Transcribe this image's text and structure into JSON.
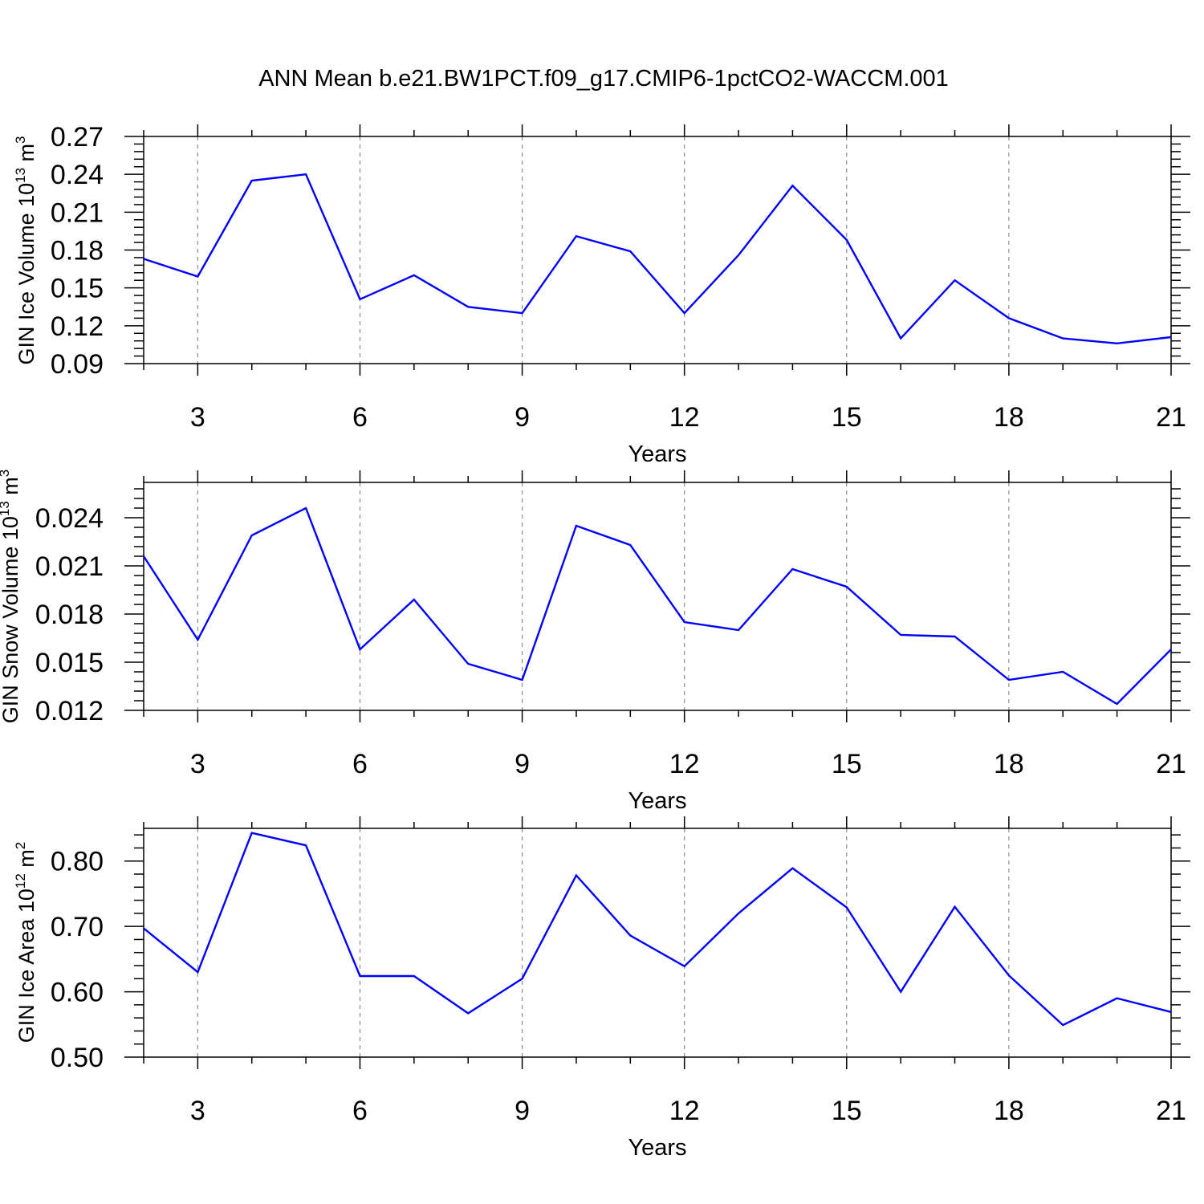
{
  "title": "ANN Mean b.e21.BW1PCT.f09_g17.CMIP6-1pctCO2-WACCM.001",
  "line_color": "#0000ff",
  "chart_data": [
    {
      "type": "line",
      "xlabel": "Years",
      "ylabel": {
        "text": "GIN Ice Volume 10",
        "sup": "13",
        "unit": " m",
        "unit_sup": "3"
      },
      "x": [
        2,
        3,
        4,
        5,
        6,
        7,
        8,
        9,
        10,
        11,
        12,
        13,
        14,
        15,
        16,
        17,
        18,
        19,
        20,
        21
      ],
      "series": [
        {
          "values": [
            0.173,
            0.159,
            0.235,
            0.24,
            0.141,
            0.16,
            0.135,
            0.13,
            0.191,
            0.179,
            0.13,
            0.176,
            0.231,
            0.188,
            0.11,
            0.156,
            0.126,
            0.11,
            0.106,
            0.111
          ]
        }
      ],
      "xlim": [
        2,
        21
      ],
      "ylim": [
        0.09,
        0.27
      ],
      "xticks": [
        "3",
        "6",
        "9",
        "12",
        "15",
        "18",
        "21"
      ],
      "yticks": [
        "0.09",
        "0.12",
        "0.15",
        "0.18",
        "0.21",
        "0.24",
        "0.27"
      ],
      "grid": "x-dashed"
    },
    {
      "type": "line",
      "xlabel": "Years",
      "ylabel": {
        "text": "GIN Snow Volume 10",
        "sup": "13",
        "unit": " m",
        "unit_sup": "3"
      },
      "x": [
        2,
        3,
        4,
        5,
        6,
        7,
        8,
        9,
        10,
        11,
        12,
        13,
        14,
        15,
        16,
        17,
        18,
        19,
        20,
        21
      ],
      "series": [
        {
          "values": [
            0.0216,
            0.0164,
            0.0229,
            0.0246,
            0.0158,
            0.0189,
            0.0149,
            0.0139,
            0.0235,
            0.0223,
            0.0175,
            0.017,
            0.0208,
            0.0197,
            0.0167,
            0.0166,
            0.0139,
            0.0144,
            0.0124,
            0.0158
          ]
        }
      ],
      "xlim": [
        2,
        21
      ],
      "ylim": [
        0.012,
        0.0262
      ],
      "xticks": [
        "3",
        "6",
        "9",
        "12",
        "15",
        "18",
        "21"
      ],
      "yticks": [
        "0.012",
        "0.015",
        "0.018",
        "0.021",
        "0.024"
      ],
      "grid": "x-dashed"
    },
    {
      "type": "line",
      "xlabel": "Years",
      "ylabel": {
        "text": "GIN Ice Area 10",
        "sup": "12",
        "unit": " m",
        "unit_sup": "2"
      },
      "x": [
        2,
        3,
        4,
        5,
        6,
        7,
        8,
        9,
        10,
        11,
        12,
        13,
        14,
        15,
        16,
        17,
        18,
        19,
        20,
        21
      ],
      "series": [
        {
          "values": [
            0.697,
            0.63,
            0.843,
            0.824,
            0.624,
            0.624,
            0.567,
            0.62,
            0.778,
            0.686,
            0.639,
            0.72,
            0.789,
            0.729,
            0.6,
            0.73,
            0.625,
            0.549,
            0.59,
            0.569
          ]
        }
      ],
      "xlim": [
        2,
        21
      ],
      "ylim": [
        0.5,
        0.85
      ],
      "xticks": [
        "3",
        "6",
        "9",
        "12",
        "15",
        "18",
        "21"
      ],
      "yticks": [
        "0.50",
        "0.60",
        "0.70",
        "0.80"
      ],
      "grid": "x-dashed"
    }
  ]
}
